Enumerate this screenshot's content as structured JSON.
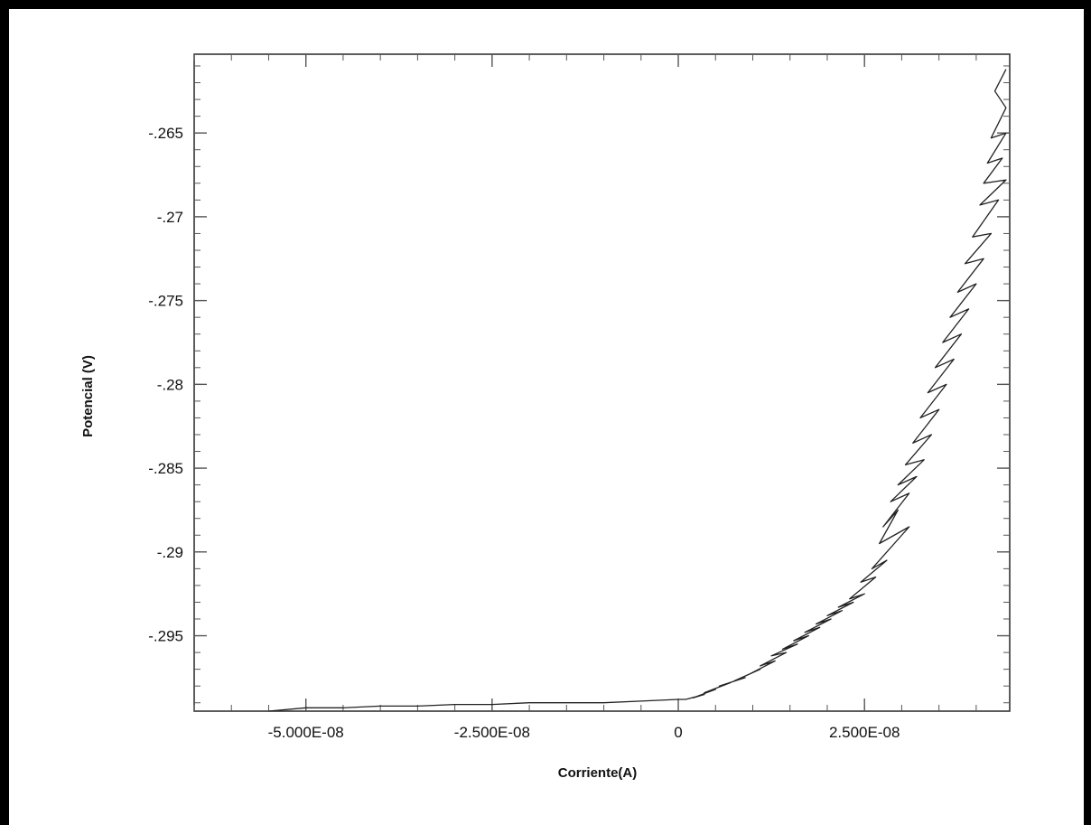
{
  "chart_data": {
    "type": "line",
    "title": "",
    "xlabel": "Corriente(A)",
    "ylabel": "Potencial (V)",
    "xlim": [
      -6.5e-08,
      4.45e-08
    ],
    "ylim": [
      -0.2995,
      -0.2603
    ],
    "x_ticks": [
      {
        "value": -5e-08,
        "label": "-5.000E-08"
      },
      {
        "value": -2.5e-08,
        "label": "-2.500E-08"
      },
      {
        "value": 0,
        "label": "0"
      },
      {
        "value": 2.5e-08,
        "label": "2.500E-08"
      }
    ],
    "y_ticks": [
      {
        "value": -0.265,
        "label": "-.265"
      },
      {
        "value": -0.27,
        "label": "-.27"
      },
      {
        "value": -0.275,
        "label": "-.275"
      },
      {
        "value": -0.28,
        "label": "-.28"
      },
      {
        "value": -0.285,
        "label": "-.285"
      },
      {
        "value": -0.29,
        "label": "-.29"
      },
      {
        "value": -0.295,
        "label": "-.295"
      }
    ],
    "grid": false,
    "series": [
      {
        "color": "#222222",
        "x": [
          -5.5e-08,
          -5e-08,
          -4.5e-08,
          -4e-08,
          -3.5e-08,
          -3e-08,
          -2.5e-08,
          -2e-08,
          -1.5e-08,
          -1e-08,
          -5e-09,
          0,
          1e-09,
          3.5e-09,
          2e-09,
          5e-09,
          3.5e-09,
          7e-09,
          5.5e-09,
          9e-09,
          7.5e-09,
          1.1e-08,
          9.5e-09,
          1.3e-08,
          1.1e-08,
          1.45e-08,
          1.25e-08,
          1.6e-08,
          1.4e-08,
          1.75e-08,
          1.55e-08,
          1.9e-08,
          1.7e-08,
          2.05e-08,
          1.85e-08,
          2.2e-08,
          2e-08,
          2.35e-08,
          2.15e-08,
          2.5e-08,
          2.3e-08,
          2.65e-08,
          2.45e-08,
          2.8e-08,
          2.6e-08,
          3.1e-08,
          2.7e-08,
          2.95e-08,
          2.75e-08,
          3.1e-08,
          2.85e-08,
          3.2e-08,
          2.95e-08,
          3.3e-08,
          3.05e-08,
          3.4e-08,
          3.15e-08,
          3.5e-08,
          3.25e-08,
          3.6e-08,
          3.35e-08,
          3.7e-08,
          3.45e-08,
          3.8e-08,
          3.55e-08,
          3.9e-08,
          3.65e-08,
          4e-08,
          3.75e-08,
          4.1e-08,
          3.85e-08,
          4.2e-08,
          3.95e-08,
          4.3e-08,
          4.05e-08,
          4.4e-08,
          4.1e-08,
          4.35e-08,
          4.15e-08,
          4.4e-08,
          4.2e-08,
          4.4e-08,
          4.25e-08,
          4.4e-08
        ],
        "y": [
          -0.2995,
          -0.2993,
          -0.2993,
          -0.2992,
          -0.2992,
          -0.2991,
          -0.2991,
          -0.299,
          -0.299,
          -0.299,
          -0.2989,
          -0.2988,
          -0.2988,
          -0.2985,
          -0.2987,
          -0.2982,
          -0.2984,
          -0.2978,
          -0.298,
          -0.2975,
          -0.2977,
          -0.297,
          -0.2973,
          -0.2965,
          -0.2968,
          -0.296,
          -0.2962,
          -0.2955,
          -0.2958,
          -0.295,
          -0.2953,
          -0.2945,
          -0.2948,
          -0.294,
          -0.2943,
          -0.2935,
          -0.2938,
          -0.293,
          -0.2933,
          -0.2925,
          -0.2928,
          -0.2915,
          -0.2918,
          -0.2905,
          -0.291,
          -0.2885,
          -0.2895,
          -0.2875,
          -0.2885,
          -0.2865,
          -0.287,
          -0.2855,
          -0.286,
          -0.2845,
          -0.2848,
          -0.283,
          -0.2835,
          -0.2815,
          -0.282,
          -0.28,
          -0.2805,
          -0.2785,
          -0.279,
          -0.277,
          -0.2775,
          -0.2755,
          -0.276,
          -0.274,
          -0.2745,
          -0.2725,
          -0.2728,
          -0.271,
          -0.2712,
          -0.269,
          -0.2693,
          -0.2678,
          -0.268,
          -0.2665,
          -0.2668,
          -0.265,
          -0.2653,
          -0.2635,
          -0.2625,
          -0.2612
        ]
      }
    ]
  }
}
